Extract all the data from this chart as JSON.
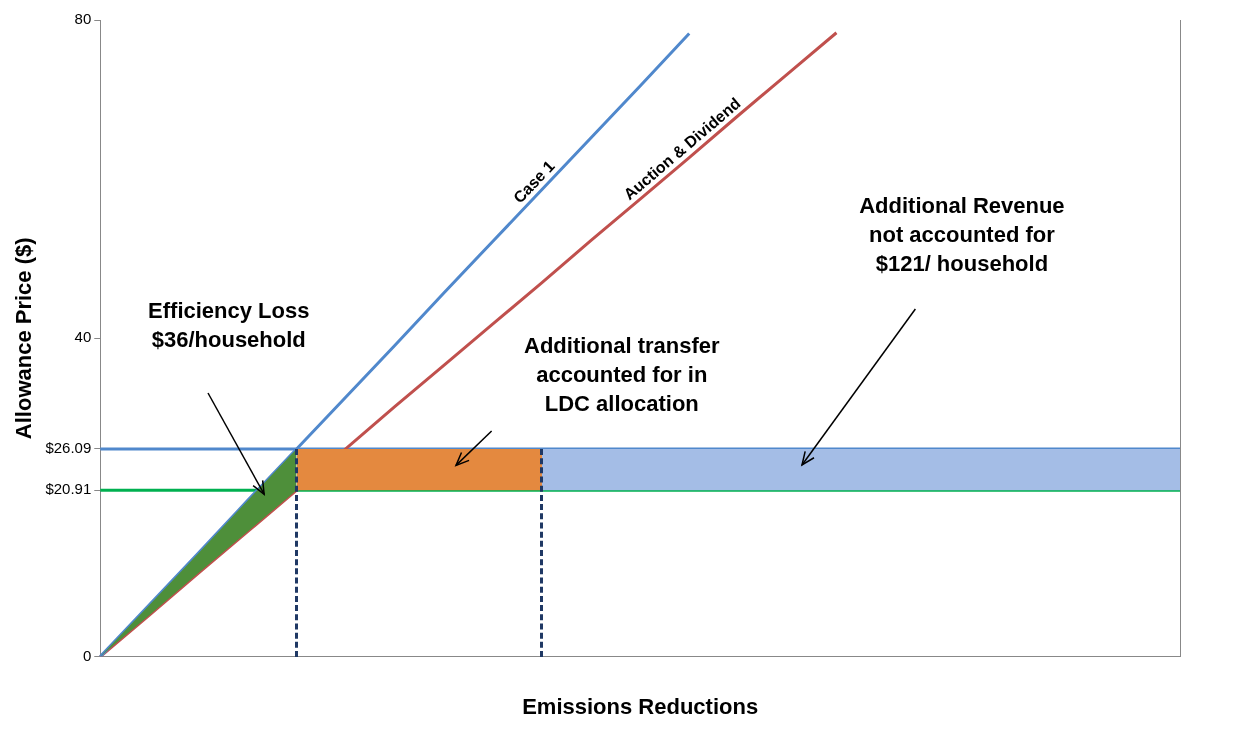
{
  "chart_data": {
    "type": "line",
    "xlabel": "Emissions Reductions",
    "ylabel": "Allowance Price ($)",
    "categories": [
      null,
      null,
      null,
      null,
      null,
      null,
      null,
      null,
      null,
      null,
      null,
      null,
      null,
      null,
      null,
      null,
      null,
      null,
      null,
      null,
      null,
      null,
      null
    ],
    "ylim": [
      0,
      80
    ],
    "yticks": [
      0,
      {
        "value": 20.91,
        "label": "$20.91"
      },
      {
        "value": 26.09,
        "label": "$26.09"
      },
      40,
      80
    ],
    "tick_labels": "y",
    "grid": false,
    "legend": false,
    "marker": "none",
    "series": [
      {
        "color": "#4e8f3a",
        "values": [
          null,
          null,
          null,
          null,
          null,
          null,
          null,
          null,
          null,
          null,
          null,
          null,
          null,
          null,
          null,
          null,
          null,
          null,
          null,
          null,
          null,
          null,
          null
        ],
        "upper": [
          0,
          6.5,
          13,
          19.6,
          26.09,
          null,
          null,
          null,
          null,
          null,
          null,
          null,
          null,
          null,
          null,
          null,
          null,
          null,
          null,
          null,
          null,
          null,
          null
        ],
        "lower": [
          0,
          5.2,
          10.5,
          15.7,
          20.91,
          null,
          null,
          null,
          null,
          null,
          null,
          null,
          null,
          null,
          null,
          null,
          null,
          null,
          null,
          null,
          null,
          null,
          null
        ]
      },
      {
        "color": "#e4893f",
        "values": [
          null,
          null,
          null,
          null,
          null,
          null,
          null,
          null,
          null,
          null,
          null,
          null,
          null,
          null,
          null,
          null,
          null,
          null,
          null,
          null,
          null,
          null,
          null
        ],
        "upper": [
          null,
          null,
          null,
          null,
          26.09,
          26.09,
          26.09,
          26.09,
          26.09,
          26.09,
          null,
          null,
          null,
          null,
          null,
          null,
          null,
          null,
          null,
          null,
          null,
          null,
          null
        ],
        "lower": [
          null,
          null,
          null,
          null,
          20.91,
          20.91,
          20.91,
          20.91,
          20.91,
          20.91,
          null,
          null,
          null,
          null,
          null,
          null,
          null,
          null,
          null,
          null,
          null,
          null,
          null
        ]
      },
      {
        "color": "#a4bde6",
        "values": [
          null,
          null,
          null,
          null,
          null,
          null,
          null,
          null,
          null,
          null,
          null,
          null,
          null,
          null,
          null,
          null,
          null,
          null,
          null,
          null,
          null,
          null,
          null
        ],
        "upper": [
          null,
          null,
          null,
          null,
          null,
          null,
          null,
          null,
          null,
          26.09,
          26.09,
          26.09,
          26.09,
          26.09,
          26.09,
          26.09,
          26.09,
          26.09,
          26.09,
          26.09,
          26.09,
          26.09,
          26.09
        ],
        "lower": [
          null,
          null,
          null,
          null,
          null,
          null,
          null,
          null,
          null,
          20.91,
          20.91,
          20.91,
          20.91,
          20.91,
          20.91,
          20.91,
          20.91,
          20.91,
          20.91,
          20.91,
          20.91,
          20.91,
          20.91
        ]
      },
      {
        "name": "Case 1",
        "color": "#5088cc",
        "values": [
          0,
          6.5,
          13,
          19.6,
          26.09,
          32.6,
          39.1,
          45.7,
          52.2,
          58.7,
          65.2,
          71.7,
          78.3,
          null,
          null,
          null,
          null,
          null,
          null,
          null,
          null,
          null,
          null
        ]
      },
      {
        "name": "Auction & Dividend",
        "color": "#c0504d",
        "values": [
          0,
          5.2,
          10.5,
          15.7,
          20.91,
          26.1,
          31.4,
          36.6,
          41.8,
          47,
          52.3,
          57.5,
          62.7,
          68,
          73.2,
          78.4,
          null,
          null,
          null,
          null,
          null,
          null,
          null
        ]
      }
    ],
    "ref_lines": [
      {
        "axis": "y",
        "value": 26.09,
        "color": "#5088cc"
      },
      {
        "axis": "y",
        "value": 20.91,
        "color": "#00b050"
      }
    ],
    "annotations": [
      "Efficiency Loss\n$36/household",
      "Additional transfer\naccounted for in\nLDC allocation",
      "Additional Revenue\nnot accounted for\n$121/ household"
    ]
  }
}
